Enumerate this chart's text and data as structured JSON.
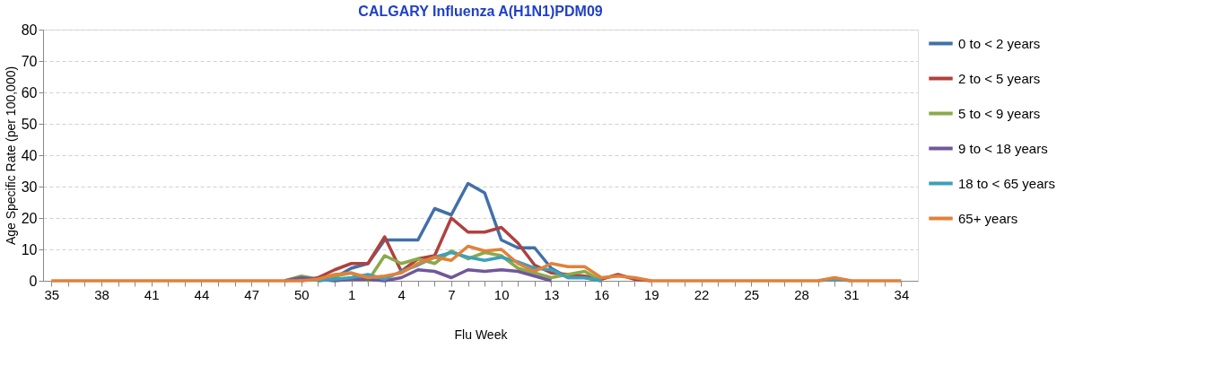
{
  "chart_data": {
    "type": "line",
    "title": "CALGARY Influenza A(H1N1)PDM09",
    "xlabel": "Flu Week",
    "ylabel": "Age Specific Rate  (per 100,000)",
    "categories": [
      "35",
      null,
      null,
      "38",
      null,
      null,
      "41",
      null,
      null,
      "44",
      null,
      null,
      "47",
      null,
      null,
      "50",
      null,
      null,
      "1",
      null,
      null,
      "4",
      null,
      null,
      "7",
      null,
      null,
      "10",
      null,
      null,
      "13",
      null,
      null,
      "16",
      null,
      null,
      "19",
      null,
      null,
      "22",
      null,
      null,
      "25",
      null,
      null,
      "28",
      null,
      null,
      "31",
      null,
      null,
      "34"
    ],
    "series": [
      {
        "name": "0  to < 2 years",
        "color": "#4170a8",
        "values": [
          null,
          null,
          null,
          null,
          null,
          null,
          null,
          null,
          null,
          null,
          null,
          null,
          null,
          null,
          null,
          null,
          0,
          1,
          4,
          5.5,
          13,
          13,
          13,
          23,
          21,
          31,
          28,
          13,
          10.5,
          10.5,
          4,
          1,
          1,
          0,
          null,
          null,
          null,
          null,
          null,
          null,
          null,
          null,
          null,
          null,
          null,
          null,
          null,
          null,
          null,
          null,
          null,
          null
        ]
      },
      {
        "name": "2 to < 5 years",
        "color": "#b0413e",
        "values": [
          null,
          null,
          null,
          null,
          null,
          null,
          null,
          null,
          null,
          null,
          null,
          null,
          null,
          null,
          null,
          0,
          1,
          3.5,
          5.5,
          5.5,
          14,
          3,
          7,
          8,
          20,
          15.5,
          15.5,
          17,
          12,
          5,
          2.5,
          2,
          1.5,
          0.5,
          2,
          0.5,
          0,
          null,
          null,
          null,
          null,
          null,
          null,
          null,
          null,
          null,
          null,
          null,
          null,
          null,
          null,
          null
        ]
      },
      {
        "name": "5 to < 9 years",
        "color": "#8aaa4a",
        "values": [
          null,
          null,
          null,
          null,
          null,
          null,
          null,
          null,
          null,
          null,
          null,
          null,
          null,
          null,
          0,
          1.5,
          0.5,
          1.5,
          2.5,
          0,
          8,
          5.5,
          7,
          5.5,
          9.5,
          7,
          9,
          8,
          4,
          2.5,
          1,
          2,
          3,
          0,
          null,
          null,
          null,
          null,
          null,
          null,
          null,
          null,
          null,
          null,
          null,
          null,
          null,
          null,
          null,
          null,
          null,
          null
        ]
      },
      {
        "name": "9 to < 18 years",
        "color": "#70579a",
        "values": [
          null,
          null,
          null,
          null,
          null,
          null,
          null,
          null,
          null,
          null,
          null,
          null,
          null,
          null,
          0,
          1,
          0.5,
          0,
          0.5,
          0.5,
          0,
          1,
          3.5,
          3,
          1,
          3.5,
          3,
          3.5,
          3,
          1.5,
          0,
          null,
          null,
          null,
          null,
          null,
          null,
          null,
          null,
          null,
          null,
          null,
          null,
          null,
          null,
          null,
          null,
          null,
          null,
          null,
          null,
          null
        ]
      },
      {
        "name": "18 to < 65 years",
        "color": "#3ea0b8",
        "values": [
          null,
          null,
          null,
          null,
          null,
          null,
          null,
          null,
          null,
          null,
          null,
          null,
          null,
          null,
          null,
          null,
          0,
          0.5,
          1,
          2,
          0.5,
          3,
          5,
          7.5,
          9,
          7.5,
          6.5,
          7.5,
          6,
          4,
          3.5,
          1,
          1,
          0,
          null,
          null,
          null,
          null,
          null,
          null,
          null,
          null,
          null,
          null,
          null,
          null,
          0,
          0.5,
          0,
          null,
          null,
          null
        ]
      },
      {
        "name": "65+ years",
        "color": "#e0823a",
        "values": [
          0,
          0,
          0,
          0,
          0,
          0,
          0,
          0,
          0,
          0,
          0,
          0,
          0,
          0,
          0,
          0,
          0.5,
          2,
          2.5,
          1,
          1.5,
          2.5,
          5.5,
          7.5,
          6.5,
          11,
          9.5,
          10,
          5.5,
          3,
          5.5,
          4.5,
          4.5,
          1,
          1.5,
          1,
          0,
          0,
          0,
          0,
          0,
          0,
          0,
          0,
          0,
          0,
          0,
          1,
          0,
          0,
          0,
          0
        ]
      }
    ],
    "ylim": [
      0,
      80
    ],
    "yticks": [
      0,
      10,
      20,
      30,
      40,
      50,
      60,
      70,
      80
    ],
    "grid": "y",
    "legend": "right",
    "marker": "none",
    "line_style": "solid"
  }
}
